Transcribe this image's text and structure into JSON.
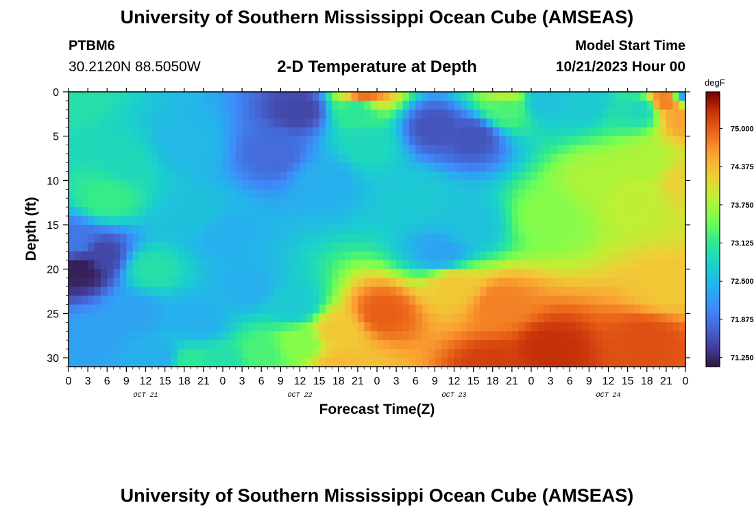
{
  "header": {
    "title": "University of Southern Mississippi Ocean Cube (AMSEAS)",
    "station_id": "PTBM6",
    "coords": "30.2120N  88.5050W",
    "plot_title": "2-D Temperature at Depth",
    "model_start_label": "Model Start Time",
    "model_start_value": "10/21/2023 Hour 00"
  },
  "footer": {
    "title": "University of Southern Mississippi Ocean Cube (AMSEAS)"
  },
  "chart_data": {
    "type": "heatmap",
    "title": "2-D Temperature at Depth",
    "xlabel": "Forecast Time(Z)",
    "ylabel": "Depth (ft)",
    "x_ticks": [
      "0",
      "3",
      "6",
      "9",
      "12",
      "15",
      "18",
      "21",
      "0",
      "3",
      "6",
      "9",
      "12",
      "15",
      "18",
      "21",
      "0",
      "3",
      "6",
      "9",
      "12",
      "15",
      "18",
      "21",
      "0",
      "3",
      "6",
      "9",
      "12",
      "15",
      "18",
      "21",
      "0"
    ],
    "x_hours_range": [
      0,
      96
    ],
    "date_labels": [
      {
        "label": "OCT 21",
        "hour": 12
      },
      {
        "label": "OCT 22",
        "hour": 36
      },
      {
        "label": "OCT 23",
        "hour": 60
      },
      {
        "label": "OCT 24",
        "hour": 84
      }
    ],
    "y_ticks": [
      0,
      5,
      10,
      15,
      20,
      25,
      30
    ],
    "ylim": [
      0,
      31
    ],
    "y_inverted": true,
    "colorbar": {
      "unit": "degF",
      "ticks": [
        "75.000",
        "74.375",
        "73.750",
        "73.125",
        "72.500",
        "71.875",
        "71.250"
      ],
      "range": [
        71.1,
        75.6
      ]
    },
    "grid": false,
    "legend": "right",
    "features": [
      {
        "x": 96,
        "y": 0,
        "value": 72.3
      },
      {
        "x": 0,
        "y": 0,
        "value": 73.0
      },
      {
        "x": 6,
        "y": 12,
        "value": 73.2
      },
      {
        "x": 9,
        "y": 8,
        "value": 72.9
      },
      {
        "x": 2,
        "y": 20,
        "value": 71.2
      },
      {
        "x": 5,
        "y": 18.5,
        "value": 71.5
      },
      {
        "x": 1,
        "y": 17,
        "value": 71.9
      },
      {
        "x": 13,
        "y": 20,
        "value": 73.0
      },
      {
        "x": 18,
        "y": 6,
        "value": 72.5
      },
      {
        "x": 20,
        "y": 14,
        "value": 72.6
      },
      {
        "x": 24,
        "y": 16,
        "value": 72.4
      },
      {
        "x": 36,
        "y": 2,
        "value": 71.5
      },
      {
        "x": 32,
        "y": 7,
        "value": 71.8
      },
      {
        "x": 40,
        "y": 10,
        "value": 72.4
      },
      {
        "x": 45,
        "y": 2,
        "value": 73.1
      },
      {
        "x": 46,
        "y": 0,
        "value": 74.9
      },
      {
        "x": 46.5,
        "y": 6,
        "value": 72.9
      },
      {
        "x": 54,
        "y": 12,
        "value": 72.7
      },
      {
        "x": 58,
        "y": 18,
        "value": 72.3
      },
      {
        "x": 57,
        "y": 4,
        "value": 71.6
      },
      {
        "x": 63,
        "y": 5,
        "value": 71.6
      },
      {
        "x": 62,
        "y": 15,
        "value": 72.6
      },
      {
        "x": 68,
        "y": 0,
        "value": 73.8
      },
      {
        "x": 68,
        "y": 2,
        "value": 73.3
      },
      {
        "x": 74,
        "y": 1,
        "value": 72.6
      },
      {
        "x": 80,
        "y": 1,
        "value": 72.7
      },
      {
        "x": 82,
        "y": 10,
        "value": 73.8
      },
      {
        "x": 88,
        "y": 12,
        "value": 73.9
      },
      {
        "x": 90,
        "y": 8,
        "value": 73.8
      },
      {
        "x": 89,
        "y": 2,
        "value": 72.9
      },
      {
        "x": 93,
        "y": 1,
        "value": 74.8
      },
      {
        "x": 96,
        "y": 10,
        "value": 74.2
      },
      {
        "x": 96,
        "y": 3,
        "value": 74.6
      },
      {
        "x": 75,
        "y": 14,
        "value": 73.6
      },
      {
        "x": 60,
        "y": 22,
        "value": 74.3
      },
      {
        "x": 49,
        "y": 25,
        "value": 75.0
      },
      {
        "x": 42,
        "y": 27,
        "value": 74.3
      },
      {
        "x": 36,
        "y": 28.5,
        "value": 73.6
      },
      {
        "x": 30,
        "y": 29.5,
        "value": 73.3
      },
      {
        "x": 24,
        "y": 30.5,
        "value": 73.0
      },
      {
        "x": 19,
        "y": 30.5,
        "value": 73.1
      },
      {
        "x": 14,
        "y": 30,
        "value": 72.4
      },
      {
        "x": 20,
        "y": 26,
        "value": 72.4
      },
      {
        "x": 67,
        "y": 24,
        "value": 74.8
      },
      {
        "x": 75,
        "y": 29,
        "value": 75.3
      },
      {
        "x": 90,
        "y": 28,
        "value": 75.1
      },
      {
        "x": 93,
        "y": 22,
        "value": 74.3
      },
      {
        "x": 66,
        "y": 31,
        "value": 75.2
      },
      {
        "x": 42,
        "y": 31,
        "value": 74.4
      },
      {
        "x": 35,
        "y": 24,
        "value": 72.7
      },
      {
        "x": 28,
        "y": 22,
        "value": 72.4
      },
      {
        "x": 10,
        "y": 25,
        "value": 72.3
      },
      {
        "x": 4,
        "y": 28,
        "value": 72.3
      }
    ]
  }
}
